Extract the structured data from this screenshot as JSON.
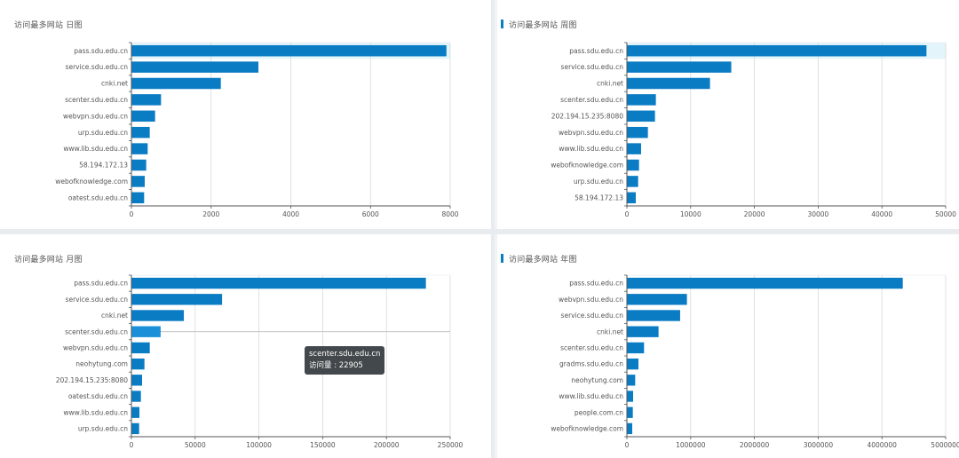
{
  "colors": {
    "bar": "#0a7cc4",
    "bar_highlight": "#1b90d8",
    "grid": "#d9d9d9",
    "axis": "#555555",
    "hover_band": "#e3f4fb"
  },
  "chart_data": [
    {
      "type": "bar",
      "orientation": "horizontal",
      "title": "访问最多网站 日图",
      "title_accent": false,
      "categories": [
        "pass.sdu.edu.cn",
        "service.sdu.edu.cn",
        "cnki.net",
        "scenter.sdu.edu.cn",
        "webvpn.sdu.edu.cn",
        "urp.sdu.edu.cn",
        "www.lib.sdu.edu.cn",
        "58.194.172.13",
        "webofknowledge.com",
        "oatest.sdu.edu.cn"
      ],
      "values": [
        7905,
        3187,
        2244,
        743,
        594,
        460,
        408,
        371,
        334,
        319
      ],
      "xlim": [
        0,
        8000
      ],
      "xticks": [
        0,
        2000,
        4000,
        6000,
        8000
      ],
      "grid": true,
      "hover_index": 0,
      "highlight_index": null,
      "tooltip": null
    },
    {
      "type": "bar",
      "orientation": "horizontal",
      "title": "访问最多网站 周图",
      "title_accent": true,
      "categories": [
        "pass.sdu.edu.cn",
        "service.sdu.edu.cn",
        "cnki.net",
        "scenter.sdu.edu.cn",
        "202.194.15.235:8080",
        "webvpn.sdu.edu.cn",
        "www.lib.sdu.edu.cn",
        "webofknowledge.com",
        "urp.sdu.edu.cn",
        "58.194.172.13"
      ],
      "values": [
        46985,
        16373,
        13033,
        4545,
        4406,
        3293,
        2226,
        1902,
        1763,
        1391
      ],
      "xlim": [
        0,
        50000
      ],
      "xticks": [
        0,
        10000,
        20000,
        30000,
        40000,
        50000
      ],
      "grid": true,
      "hover_index": 0,
      "highlight_index": null,
      "tooltip": null
    },
    {
      "type": "bar",
      "orientation": "horizontal",
      "title": "访问最多网站 月图",
      "title_accent": false,
      "categories": [
        "pass.sdu.edu.cn",
        "service.sdu.edu.cn",
        "cnki.net",
        "scenter.sdu.edu.cn",
        "webvpn.sdu.edu.cn",
        "neohytung.com",
        "202.194.15.235:8080",
        "oatest.sdu.edu.cn",
        "www.lib.sdu.edu.cn",
        "urp.sdu.edu.cn"
      ],
      "values": [
        230950,
        71100,
        41120,
        22905,
        14400,
        10220,
        8360,
        7430,
        6270,
        6040
      ],
      "xlim": [
        0,
        250000
      ],
      "xticks": [
        0,
        50000,
        100000,
        150000,
        200000,
        250000
      ],
      "grid": true,
      "hover_index": null,
      "highlight_index": 3,
      "tooltip": {
        "line1": "scenter.sdu.edu.cn",
        "line2": "访问量 : 22905"
      }
    },
    {
      "type": "bar",
      "orientation": "horizontal",
      "title": "访问最多网站 年图",
      "title_accent": true,
      "categories": [
        "pass.sdu.edu.cn",
        "webvpn.sdu.edu.cn",
        "service.sdu.edu.cn",
        "cnki.net",
        "scenter.sdu.edu.cn",
        "gradms.sdu.edu.cn",
        "neohytung.com",
        "www.lib.sdu.edu.cn",
        "people.com.cn",
        "webofknowledge.com"
      ],
      "values": [
        4327000,
        941600,
        834900,
        496300,
        269000,
        180900,
        129900,
        97400,
        92800,
        83500
      ],
      "xlim": [
        0,
        5000000
      ],
      "xticks": [
        0,
        1000000,
        2000000,
        3000000,
        4000000,
        5000000
      ],
      "grid": true,
      "hover_index": null,
      "highlight_index": null,
      "tooltip": null
    }
  ]
}
